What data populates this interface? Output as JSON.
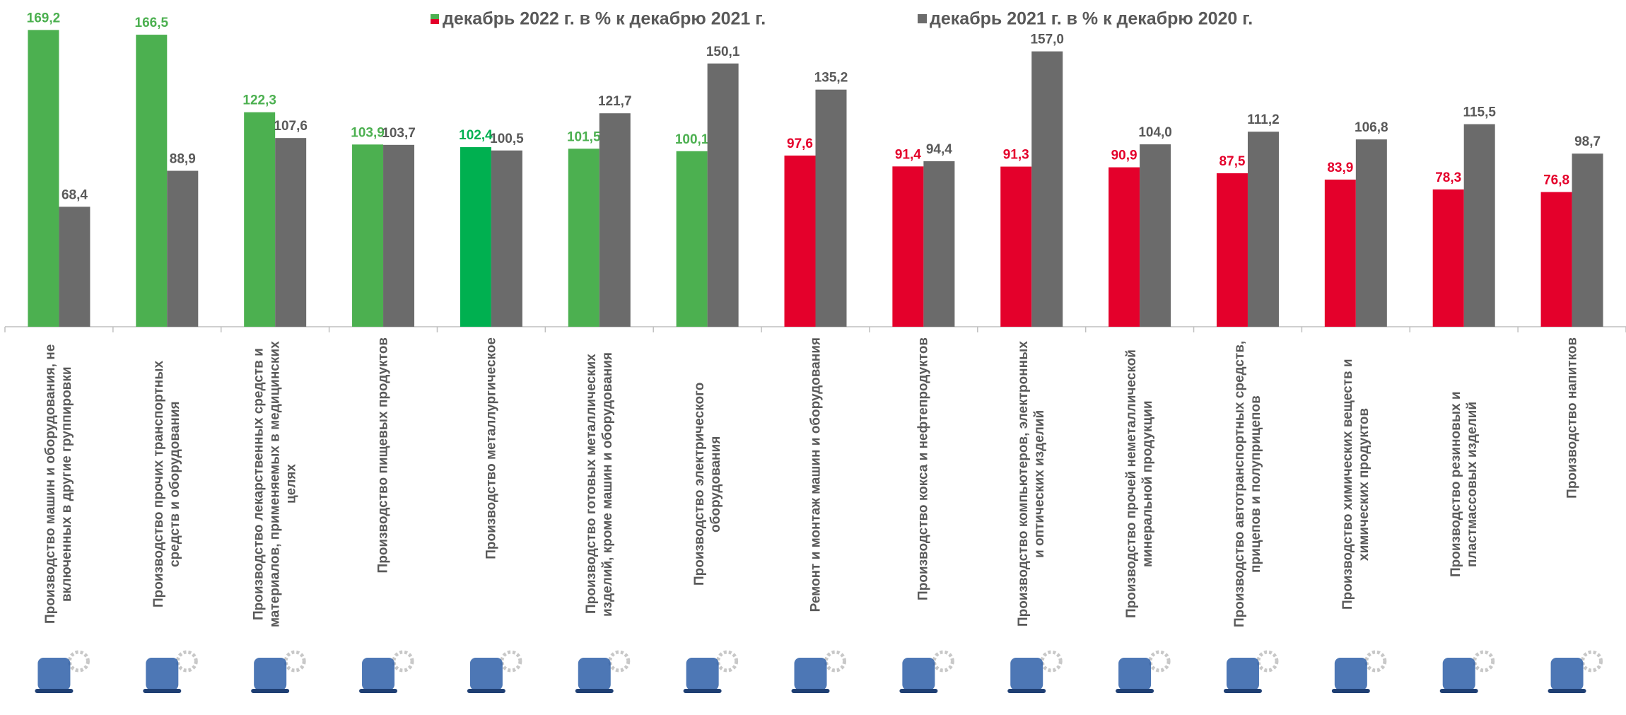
{
  "chart_data": {
    "type": "bar",
    "categories": [
      "Производство машин и оборудования, не включенных в другие группировки",
      "Производство прочих транспортных средств и оборудования",
      "Производство лекарственных средств и материалов, применяемых в медицинских целях",
      "Производство пищевых продуктов",
      "Производство металлургическое",
      "Производство готовых металлических изделий, кроме машин и оборудования",
      "Производство электрического оборудования",
      "Ремонт и монтаж машин и оборудования",
      "Производство кокса и нефтепродуктов",
      "Производство компьютеров, электронных и оптических изделий",
      "Производство прочей неметаллической минеральной продукции",
      "Производство автотранспортных средств, прицепов и полуприцепов",
      "Производство химических веществ и химических продуктов",
      "Производство резиновых и пластмассовых изделий",
      "Производство напитков"
    ],
    "series": [
      {
        "name": "декабрь 2022 г. в % к декабрю 2021 г.",
        "color": "#4cb050",
        "colors": [
          "#4cb050",
          "#4cb050",
          "#4cb050",
          "#4cb050",
          "#00b050",
          "#4cb050",
          "#4cb050",
          "#e4002b",
          "#e4002b",
          "#e4002b",
          "#e4002b",
          "#e4002b",
          "#e4002b",
          "#e4002b",
          "#e4002b"
        ],
        "values": [
          169.2,
          166.5,
          122.3,
          103.9,
          102.4,
          101.5,
          100.1,
          97.6,
          91.4,
          91.3,
          90.9,
          87.5,
          83.9,
          78.3,
          76.8
        ],
        "value_labels": [
          "169,2",
          "166,5",
          "122,3",
          "103,9",
          "102,4",
          "101,5",
          "100,1",
          "97,6",
          "91,4",
          "91,3",
          "90,9",
          "87,5",
          "83,9",
          "78,3",
          "76,8"
        ]
      },
      {
        "name": "декабрь 2021 г. в % к декабрю 2020 г.",
        "color": "#6b6b6b",
        "label_color": "#595959",
        "values": [
          68.4,
          88.9,
          107.6,
          103.7,
          100.5,
          121.7,
          150.1,
          135.2,
          94.4,
          157.0,
          104.0,
          111.2,
          106.8,
          115.5,
          98.7
        ],
        "value_labels": [
          "68,4",
          "88,9",
          "107,6",
          "103,7",
          "100,5",
          "121,7",
          "150,1",
          "135,2",
          "94,4",
          "157,0",
          "104,0",
          "111,2",
          "106,8",
          "115,5",
          "98,7"
        ]
      }
    ]
  }
}
